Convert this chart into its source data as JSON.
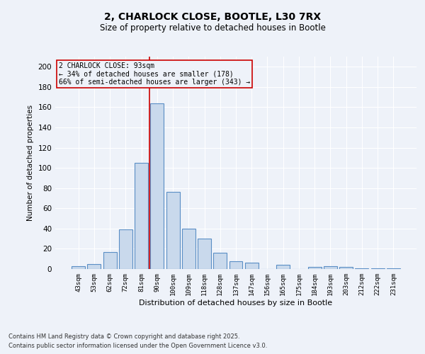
{
  "title_line1": "2, CHARLOCK CLOSE, BOOTLE, L30 7RX",
  "title_line2": "Size of property relative to detached houses in Bootle",
  "xlabel": "Distribution of detached houses by size in Bootle",
  "ylabel": "Number of detached properties",
  "categories": [
    "43sqm",
    "53sqm",
    "62sqm",
    "72sqm",
    "81sqm",
    "90sqm",
    "100sqm",
    "109sqm",
    "118sqm",
    "128sqm",
    "137sqm",
    "147sqm",
    "156sqm",
    "165sqm",
    "175sqm",
    "184sqm",
    "193sqm",
    "203sqm",
    "212sqm",
    "222sqm",
    "231sqm"
  ],
  "values": [
    3,
    5,
    17,
    39,
    105,
    164,
    76,
    40,
    30,
    16,
    8,
    6,
    0,
    4,
    0,
    2,
    3,
    2,
    1,
    1,
    1
  ],
  "bar_color": "#c9d9ec",
  "bar_edge_color": "#5a8ec5",
  "property_bin_index": 5,
  "annotation_line1": "2 CHARLOCK CLOSE: 93sqm",
  "annotation_line2": "← 34% of detached houses are smaller (178)",
  "annotation_line3": "66% of semi-detached houses are larger (343) →",
  "vline_color": "#cc0000",
  "annotation_box_edgecolor": "#cc0000",
  "background_color": "#eef2f9",
  "grid_color": "#ffffff",
  "footer_line1": "Contains HM Land Registry data © Crown copyright and database right 2025.",
  "footer_line2": "Contains public sector information licensed under the Open Government Licence v3.0.",
  "ylim_max": 210,
  "yticks": [
    0,
    20,
    40,
    60,
    80,
    100,
    120,
    140,
    160,
    180,
    200
  ]
}
